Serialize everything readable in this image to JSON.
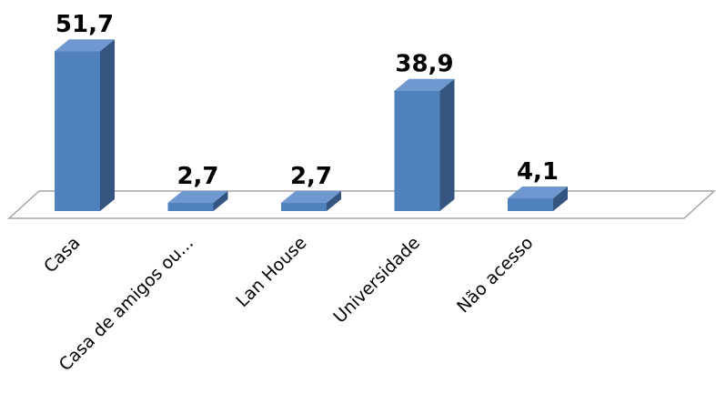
{
  "chart_data": {
    "type": "bar",
    "categories": [
      "Casa",
      "Casa de amigos ou...",
      "Lan House",
      "Universidade",
      "Não acesso"
    ],
    "values": [
      51.7,
      2.7,
      2.7,
      38.9,
      4.1
    ],
    "value_labels": [
      "51,7",
      "2,7",
      "2,7",
      "38,9",
      "4,1"
    ],
    "ylim": [
      0,
      60
    ],
    "grid": false,
    "legend": "none",
    "three_d": true,
    "colors": {
      "bar_front": "#4F81BD",
      "bar_top": "#6E98CF",
      "bar_side": "#34557F",
      "floor_stroke": "#A6A6A6"
    }
  }
}
